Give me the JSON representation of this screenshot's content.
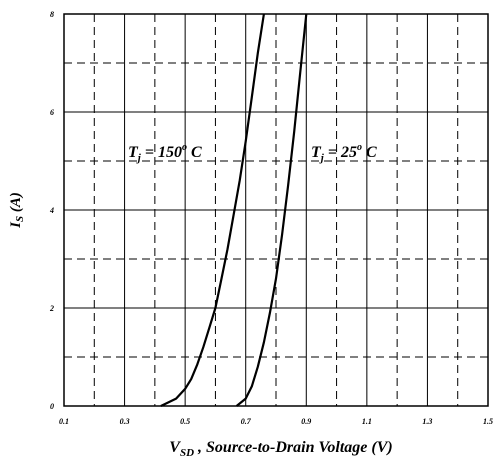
{
  "chart_data": {
    "type": "line",
    "title": "",
    "xlabel": {
      "main": "V",
      "sub": "SD",
      "rest": " , Source-to-Drain Voltage (V)"
    },
    "ylabel": {
      "main": "I",
      "sub": "S",
      "rest": " (A)"
    },
    "xlim": [
      0.1,
      1.5
    ],
    "ylim": [
      0,
      8
    ],
    "x_ticks": [
      "0.1",
      "0.3",
      "0.5",
      "0.7",
      "0.9",
      "1.1",
      "1.3",
      "1.5"
    ],
    "x_tick_values": [
      0.1,
      0.3,
      0.5,
      0.7,
      0.9,
      1.1,
      1.3,
      1.5
    ],
    "y_ticks": [
      "0",
      "2",
      "4",
      "6",
      "8"
    ],
    "y_tick_values": [
      0,
      2,
      4,
      6,
      8
    ],
    "grid": true,
    "series": [
      {
        "name": "T j = 150 o C",
        "x": [
          0.42,
          0.47,
          0.5,
          0.52,
          0.54,
          0.56,
          0.58,
          0.6,
          0.62,
          0.64,
          0.66,
          0.68,
          0.7,
          0.72,
          0.74,
          0.76
        ],
        "y": [
          0,
          0.15,
          0.35,
          0.55,
          0.85,
          1.2,
          1.6,
          2.0,
          2.6,
          3.2,
          3.9,
          4.6,
          5.4,
          6.3,
          7.2,
          8.0
        ]
      },
      {
        "name": "T j = 25 o C",
        "x": [
          0.67,
          0.7,
          0.72,
          0.74,
          0.76,
          0.78,
          0.8,
          0.82,
          0.84,
          0.86,
          0.88,
          0.9
        ],
        "y": [
          0,
          0.15,
          0.4,
          0.8,
          1.3,
          1.9,
          2.6,
          3.5,
          4.5,
          5.6,
          6.8,
          8.0
        ]
      }
    ],
    "annotations": [
      {
        "main": "T",
        "sub": "j",
        "rest1": " = 150",
        "sup": "o",
        "rest2": " C"
      },
      {
        "main": "T",
        "sub": "j",
        "rest1": " = 25",
        "sup": "o",
        "rest2": " C"
      }
    ]
  }
}
